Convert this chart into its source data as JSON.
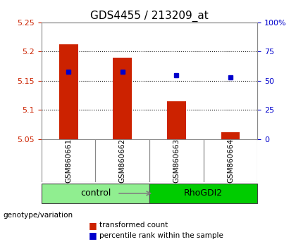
{
  "title": "GDS4455 / 213209_at",
  "samples": [
    "GSM860661",
    "GSM860662",
    "GSM860663",
    "GSM860664"
  ],
  "red_bar_values": [
    5.212,
    5.19,
    5.115,
    5.062
  ],
  "blue_square_values": [
    57.5,
    57.5,
    55.0,
    53.0
  ],
  "ylim_left": [
    5.05,
    5.25
  ],
  "ylim_right": [
    0,
    100
  ],
  "yticks_left": [
    5.05,
    5.1,
    5.15,
    5.2,
    5.25
  ],
  "ytick_labels_left": [
    "5.05",
    "5.1",
    "5.15",
    "5.2",
    "5.25"
  ],
  "yticks_right": [
    0,
    25,
    50,
    75,
    100
  ],
  "ytick_labels_right": [
    "0",
    "25",
    "50",
    "75",
    "100%"
  ],
  "baseline": 5.05,
  "groups": [
    {
      "label": "control",
      "samples": [
        0,
        1
      ],
      "color": "#90ee90"
    },
    {
      "label": "RhoGDI2",
      "samples": [
        2,
        3
      ],
      "color": "#00cc00"
    }
  ],
  "bar_color": "#cc2200",
  "square_color": "#0000cc",
  "sample_box_color": "#d3d3d3",
  "legend_red_label": "transformed count",
  "legend_blue_label": "percentile rank within the sample",
  "genotype_label": "genotype/variation",
  "plot_bg": "#ffffff",
  "bar_width": 0.35,
  "grid_yticks": [
    5.1,
    5.15,
    5.2
  ]
}
